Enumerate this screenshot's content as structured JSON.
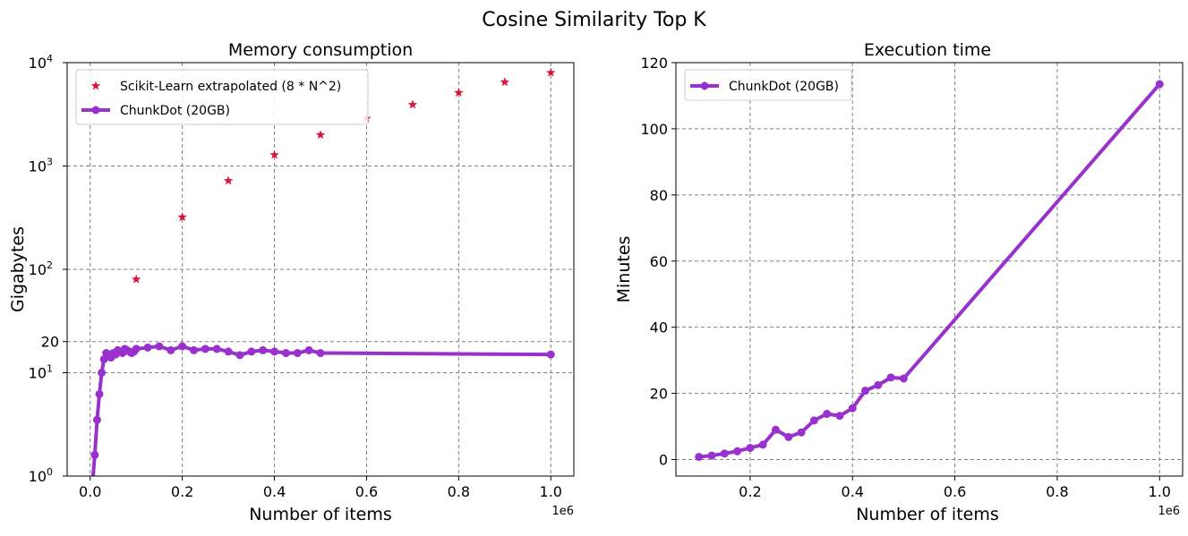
{
  "figure": {
    "suptitle": "Cosine Similarity Top K"
  },
  "colors": {
    "scikit": "#dc143c",
    "chunkdot": "#9932cc"
  },
  "chart_data": [
    {
      "type": "line",
      "title": "Memory consumption",
      "xlabel": "Number of items",
      "ylabel": "Gigabytes",
      "x_offset_label": "1e6",
      "yscale": "log",
      "xlim": [
        -0.05,
        1.05
      ],
      "ylim": [
        1,
        10000
      ],
      "grid": true,
      "legend_position": "top-left",
      "x_ticks": [
        {
          "v": 0.0,
          "label": "0.0"
        },
        {
          "v": 0.2,
          "label": "0.2"
        },
        {
          "v": 0.4,
          "label": "0.4"
        },
        {
          "v": 0.6,
          "label": "0.6"
        },
        {
          "v": 0.8,
          "label": "0.8"
        },
        {
          "v": 1.0,
          "label": "1.0"
        }
      ],
      "y_ticks": [
        {
          "v": 1,
          "base": "10",
          "exp": "0"
        },
        {
          "v": 10,
          "base": "10",
          "exp": "1"
        },
        {
          "v": 20,
          "label": "20"
        },
        {
          "v": 100,
          "base": "10",
          "exp": "2"
        },
        {
          "v": 1000,
          "base": "10",
          "exp": "3"
        },
        {
          "v": 10000,
          "base": "10",
          "exp": "4"
        }
      ],
      "series": [
        {
          "name": "Scikit-Learn extrapolated (8 * N^2)",
          "style": "star",
          "x": [
            0.1,
            0.2,
            0.3,
            0.4,
            0.5,
            0.6,
            0.7,
            0.8,
            0.9,
            1.0
          ],
          "y": [
            80,
            320,
            720,
            1280,
            2000,
            2880,
            3920,
            5120,
            6480,
            8000
          ]
        },
        {
          "name": "ChunkDot (20GB)",
          "style": "line-marker",
          "x": [
            0.001,
            0.01,
            0.015,
            0.02,
            0.025,
            0.03,
            0.035,
            0.04,
            0.045,
            0.05,
            0.055,
            0.06,
            0.065,
            0.07,
            0.075,
            0.08,
            0.085,
            0.09,
            0.095,
            0.1,
            0.125,
            0.15,
            0.175,
            0.2,
            0.225,
            0.25,
            0.275,
            0.3,
            0.325,
            0.35,
            0.375,
            0.4,
            0.425,
            0.45,
            0.475,
            0.5,
            1.0
          ],
          "y": [
            0.5,
            1.6,
            3.5,
            6.2,
            10.0,
            13.5,
            15.5,
            15.0,
            14.0,
            15.5,
            15.0,
            16.5,
            16.0,
            15.5,
            17.0,
            16.5,
            16.0,
            15.5,
            16.0,
            17.0,
            17.5,
            18.0,
            16.5,
            18.0,
            16.5,
            17.0,
            17.0,
            16.0,
            14.8,
            16.0,
            16.5,
            16.0,
            15.5,
            15.5,
            16.5,
            15.5,
            15.0
          ]
        }
      ]
    },
    {
      "type": "line",
      "title": "Execution time",
      "xlabel": "Number of items",
      "ylabel": "Minutes",
      "x_offset_label": "1e6",
      "yscale": "linear",
      "xlim": [
        0.055,
        1.045
      ],
      "ylim": [
        -5,
        120
      ],
      "grid": true,
      "legend_position": "top-left",
      "x_ticks": [
        {
          "v": 0.2,
          "label": "0.2"
        },
        {
          "v": 0.4,
          "label": "0.4"
        },
        {
          "v": 0.6,
          "label": "0.6"
        },
        {
          "v": 0.8,
          "label": "0.8"
        },
        {
          "v": 1.0,
          "label": "1.0"
        }
      ],
      "y_ticks": [
        {
          "v": 0,
          "label": "0"
        },
        {
          "v": 20,
          "label": "20"
        },
        {
          "v": 40,
          "label": "40"
        },
        {
          "v": 60,
          "label": "60"
        },
        {
          "v": 80,
          "label": "80"
        },
        {
          "v": 100,
          "label": "100"
        },
        {
          "v": 120,
          "label": "120"
        }
      ],
      "series": [
        {
          "name": "ChunkDot (20GB)",
          "style": "line-marker",
          "x": [
            0.1,
            0.125,
            0.15,
            0.175,
            0.2,
            0.225,
            0.25,
            0.275,
            0.3,
            0.325,
            0.35,
            0.375,
            0.4,
            0.425,
            0.45,
            0.475,
            0.5,
            1.0
          ],
          "y": [
            0.8,
            1.2,
            1.8,
            2.5,
            3.5,
            4.5,
            9.0,
            6.8,
            8.2,
            11.8,
            13.8,
            13.2,
            15.5,
            20.8,
            22.5,
            24.8,
            24.5,
            113.5
          ]
        }
      ]
    }
  ]
}
